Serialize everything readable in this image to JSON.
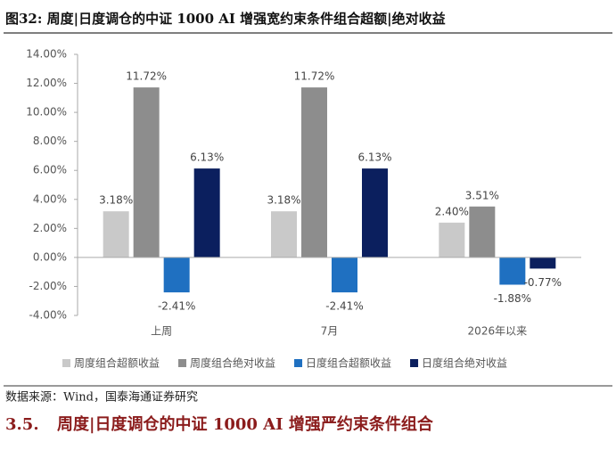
{
  "chart_data": {
    "type": "bar",
    "title": "图32:  周度|日度调仓的中证 1000 AI 增强宽约束条件组合超额|绝对收益",
    "categories": [
      "上周",
      "7月",
      "2026年以来"
    ],
    "series": [
      {
        "name": "周度组合超额收益",
        "color": "#c9c9c9",
        "values": [
          3.18,
          3.18,
          2.4
        ],
        "value_labels": [
          "3.18%",
          "3.18%",
          "2.40%"
        ]
      },
      {
        "name": "周度组合绝对收益",
        "color": "#8d8d8d",
        "values": [
          11.72,
          11.72,
          3.51
        ],
        "value_labels": [
          "11.72%",
          "11.72%",
          "3.51%"
        ]
      },
      {
        "name": "日度组合超额收益",
        "color": "#1f70c1",
        "values": [
          -2.41,
          -2.41,
          -1.88
        ],
        "value_labels": [
          "-2.41%",
          "-2.41%",
          "-1.88%"
        ]
      },
      {
        "name": "日度组合绝对收益",
        "color": "#0b1f5e",
        "values": [
          6.13,
          6.13,
          -0.77
        ],
        "value_labels": [
          "6.13%",
          "6.13%",
          "-0.77%"
        ]
      }
    ],
    "ylim": [
      -4,
      14
    ],
    "yticks": [
      {
        "value": -4,
        "label": "-4.00%"
      },
      {
        "value": -2,
        "label": "-2.00%"
      },
      {
        "value": 0,
        "label": "0.00%"
      },
      {
        "value": 2,
        "label": "2.00%"
      },
      {
        "value": 4,
        "label": "4.00%"
      },
      {
        "value": 6,
        "label": "6.00%"
      },
      {
        "value": 8,
        "label": "8.00%"
      },
      {
        "value": 10,
        "label": "10.00%"
      },
      {
        "value": 12,
        "label": "12.00%"
      },
      {
        "value": 14,
        "label": "14.00%"
      }
    ],
    "legend": "bottom"
  },
  "document": {
    "source": "数据来源：Wind，国泰海通证券研究",
    "section_number": "3.5.",
    "section_title": "周度|日度调仓的中证 1000 AI 增强严约束条件组合"
  }
}
